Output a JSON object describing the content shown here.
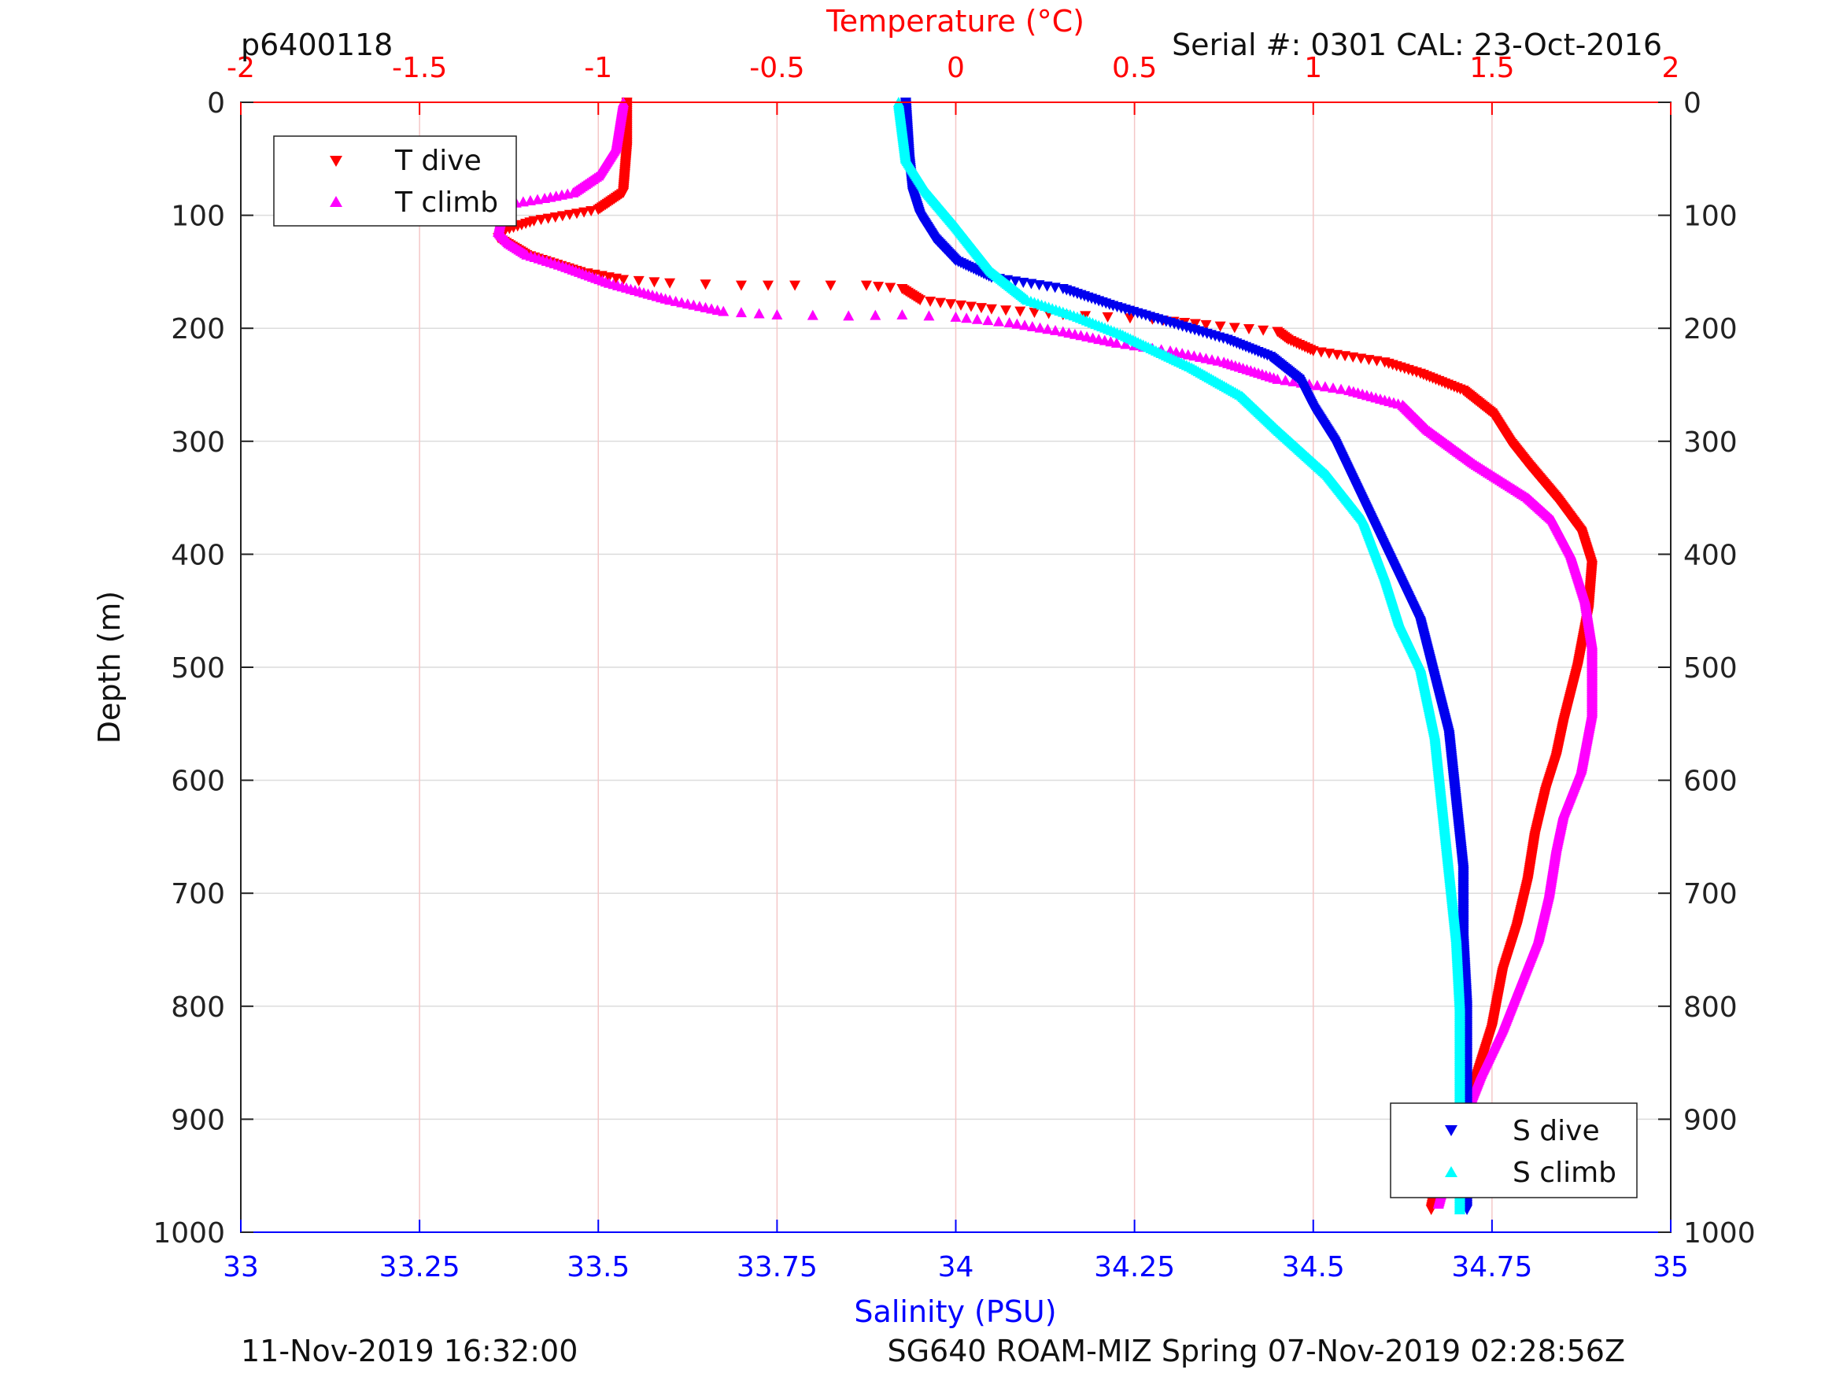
{
  "header": {
    "top_left": "p6400118",
    "top_right": "Serial #: 0301  CAL: 23-Oct-2016"
  },
  "footer": {
    "left": "11-Nov-2019 16:32:00",
    "right": "SG640 ROAM-MIZ Spring 07-Nov-2019 02:28:56Z"
  },
  "colors": {
    "t_dive": "#ff0000",
    "t_climb": "#ff00ff",
    "s_dive": "#0000ee",
    "s_climb": "#00ffff",
    "temperature_axis": "#ff0000",
    "salinity_axis": "#0000ff"
  },
  "chart_data": {
    "type": "scatter",
    "grid": true,
    "y_axis": {
      "label": "Depth (m)",
      "range": [
        0,
        1000
      ],
      "reversed": true,
      "ticks": [
        0,
        100,
        200,
        300,
        400,
        500,
        600,
        700,
        800,
        900,
        1000
      ],
      "tick_labels": [
        "0",
        "100",
        "200",
        "300",
        "400",
        "500",
        "600",
        "700",
        "800",
        "900",
        "1000"
      ]
    },
    "temperature_axis": {
      "label": "Temperature (°C)",
      "position": "top",
      "range": [
        -2,
        2
      ],
      "ticks": [
        -2,
        -1.5,
        -1,
        -0.5,
        0,
        0.5,
        1,
        1.5,
        2
      ],
      "tick_labels": [
        "-2",
        "-1.5",
        "-1",
        "-0.5",
        "0",
        "0.5",
        "1",
        "1.5",
        "2"
      ]
    },
    "salinity_axis": {
      "label": "Salinity (PSU)",
      "position": "bottom",
      "range": [
        33,
        35
      ],
      "ticks": [
        33,
        33.25,
        33.5,
        33.75,
        34,
        34.25,
        34.5,
        34.75,
        35
      ],
      "tick_labels": [
        "33",
        "33.25",
        "33.5",
        "33.75",
        "34",
        "34.25",
        "34.5",
        "34.75",
        "35"
      ]
    },
    "legends": [
      {
        "placement": "top-left",
        "entries": [
          "T dive",
          "T climb"
        ]
      },
      {
        "placement": "bottom-right",
        "entries": [
          "S dive",
          "S climb"
        ]
      }
    ],
    "series": [
      {
        "name": "T dive",
        "axis": "temperature",
        "marker": "triangle-down",
        "points": [
          [
            -0.92,
            0
          ],
          [
            -0.92,
            40
          ],
          [
            -0.93,
            80
          ],
          [
            -1.0,
            95
          ],
          [
            -1.18,
            105
          ],
          [
            -1.26,
            113
          ],
          [
            -1.28,
            120
          ],
          [
            -1.2,
            135
          ],
          [
            -1.05,
            150
          ],
          [
            -0.93,
            157
          ],
          [
            -0.8,
            160
          ],
          [
            -0.6,
            162
          ],
          [
            -0.45,
            162
          ],
          [
            -0.25,
            162
          ],
          [
            -0.15,
            165
          ],
          [
            -0.1,
            175
          ],
          [
            0.1,
            183
          ],
          [
            0.3,
            188
          ],
          [
            0.55,
            192
          ],
          [
            0.7,
            197
          ],
          [
            0.9,
            203
          ],
          [
            0.93,
            210
          ],
          [
            1.0,
            220
          ],
          [
            1.2,
            230
          ],
          [
            1.3,
            240
          ],
          [
            1.42,
            255
          ],
          [
            1.5,
            275
          ],
          [
            1.55,
            300
          ],
          [
            1.6,
            320
          ],
          [
            1.68,
            350
          ],
          [
            1.75,
            380
          ],
          [
            1.78,
            410
          ],
          [
            1.77,
            450
          ],
          [
            1.74,
            500
          ],
          [
            1.7,
            550
          ],
          [
            1.68,
            580
          ],
          [
            1.65,
            610
          ],
          [
            1.62,
            650
          ],
          [
            1.6,
            690
          ],
          [
            1.57,
            730
          ],
          [
            1.53,
            770
          ],
          [
            1.5,
            820
          ],
          [
            1.45,
            870
          ],
          [
            1.4,
            910
          ],
          [
            1.35,
            950
          ],
          [
            1.33,
            980
          ]
        ]
      },
      {
        "name": "T climb",
        "axis": "temperature",
        "marker": "triangle-up",
        "points": [
          [
            -0.93,
            0
          ],
          [
            -0.95,
            40
          ],
          [
            -1.0,
            65
          ],
          [
            -1.07,
            80
          ],
          [
            -1.15,
            85
          ],
          [
            -1.25,
            90
          ],
          [
            -1.27,
            100
          ],
          [
            -1.28,
            115
          ],
          [
            -1.25,
            125
          ],
          [
            -1.2,
            135
          ],
          [
            -1.1,
            145
          ],
          [
            -0.97,
            160
          ],
          [
            -0.8,
            175
          ],
          [
            -0.65,
            185
          ],
          [
            -0.5,
            188
          ],
          [
            -0.3,
            189
          ],
          [
            -0.15,
            188
          ],
          [
            0.0,
            190
          ],
          [
            0.15,
            195
          ],
          [
            0.3,
            203
          ],
          [
            0.45,
            213
          ],
          [
            0.6,
            220
          ],
          [
            0.75,
            230
          ],
          [
            0.9,
            245
          ],
          [
            1.1,
            255
          ],
          [
            1.25,
            268
          ],
          [
            1.32,
            290
          ],
          [
            1.45,
            320
          ],
          [
            1.6,
            350
          ],
          [
            1.67,
            370
          ],
          [
            1.72,
            400
          ],
          [
            1.76,
            440
          ],
          [
            1.78,
            480
          ],
          [
            1.78,
            540
          ],
          [
            1.75,
            590
          ],
          [
            1.7,
            630
          ],
          [
            1.68,
            660
          ],
          [
            1.66,
            700
          ],
          [
            1.63,
            740
          ],
          [
            1.58,
            780
          ],
          [
            1.53,
            820
          ],
          [
            1.47,
            860
          ],
          [
            1.42,
            900
          ],
          [
            1.38,
            940
          ],
          [
            1.35,
            975
          ]
        ]
      },
      {
        "name": "S dive",
        "axis": "salinity",
        "marker": "triangle-down",
        "points": [
          [
            33.93,
            0
          ],
          [
            33.935,
            50
          ],
          [
            33.94,
            80
          ],
          [
            33.95,
            100
          ],
          [
            33.97,
            120
          ],
          [
            34.0,
            140
          ],
          [
            34.05,
            155
          ],
          [
            34.15,
            165
          ],
          [
            34.22,
            180
          ],
          [
            34.3,
            195
          ],
          [
            34.38,
            210
          ],
          [
            34.44,
            225
          ],
          [
            34.48,
            245
          ],
          [
            34.5,
            270
          ],
          [
            34.53,
            300
          ],
          [
            34.56,
            340
          ],
          [
            34.59,
            380
          ],
          [
            34.62,
            420
          ],
          [
            34.65,
            460
          ],
          [
            34.67,
            510
          ],
          [
            34.69,
            560
          ],
          [
            34.7,
            620
          ],
          [
            34.71,
            680
          ],
          [
            34.71,
            740
          ],
          [
            34.715,
            800
          ],
          [
            34.715,
            860
          ],
          [
            34.715,
            920
          ],
          [
            34.715,
            980
          ]
        ]
      },
      {
        "name": "S climb",
        "axis": "salinity",
        "marker": "triangle-up",
        "points": [
          [
            33.92,
            0
          ],
          [
            33.93,
            50
          ],
          [
            33.96,
            80
          ],
          [
            34.0,
            110
          ],
          [
            34.05,
            150
          ],
          [
            34.1,
            175
          ],
          [
            34.17,
            190
          ],
          [
            34.23,
            205
          ],
          [
            34.28,
            220
          ],
          [
            34.33,
            235
          ],
          [
            34.4,
            260
          ],
          [
            34.45,
            290
          ],
          [
            34.52,
            330
          ],
          [
            34.57,
            370
          ],
          [
            34.6,
            420
          ],
          [
            34.62,
            460
          ],
          [
            34.65,
            500
          ],
          [
            34.67,
            560
          ],
          [
            34.68,
            620
          ],
          [
            34.69,
            680
          ],
          [
            34.7,
            740
          ],
          [
            34.705,
            800
          ],
          [
            34.705,
            860
          ],
          [
            34.705,
            920
          ],
          [
            34.705,
            980
          ]
        ]
      }
    ]
  }
}
